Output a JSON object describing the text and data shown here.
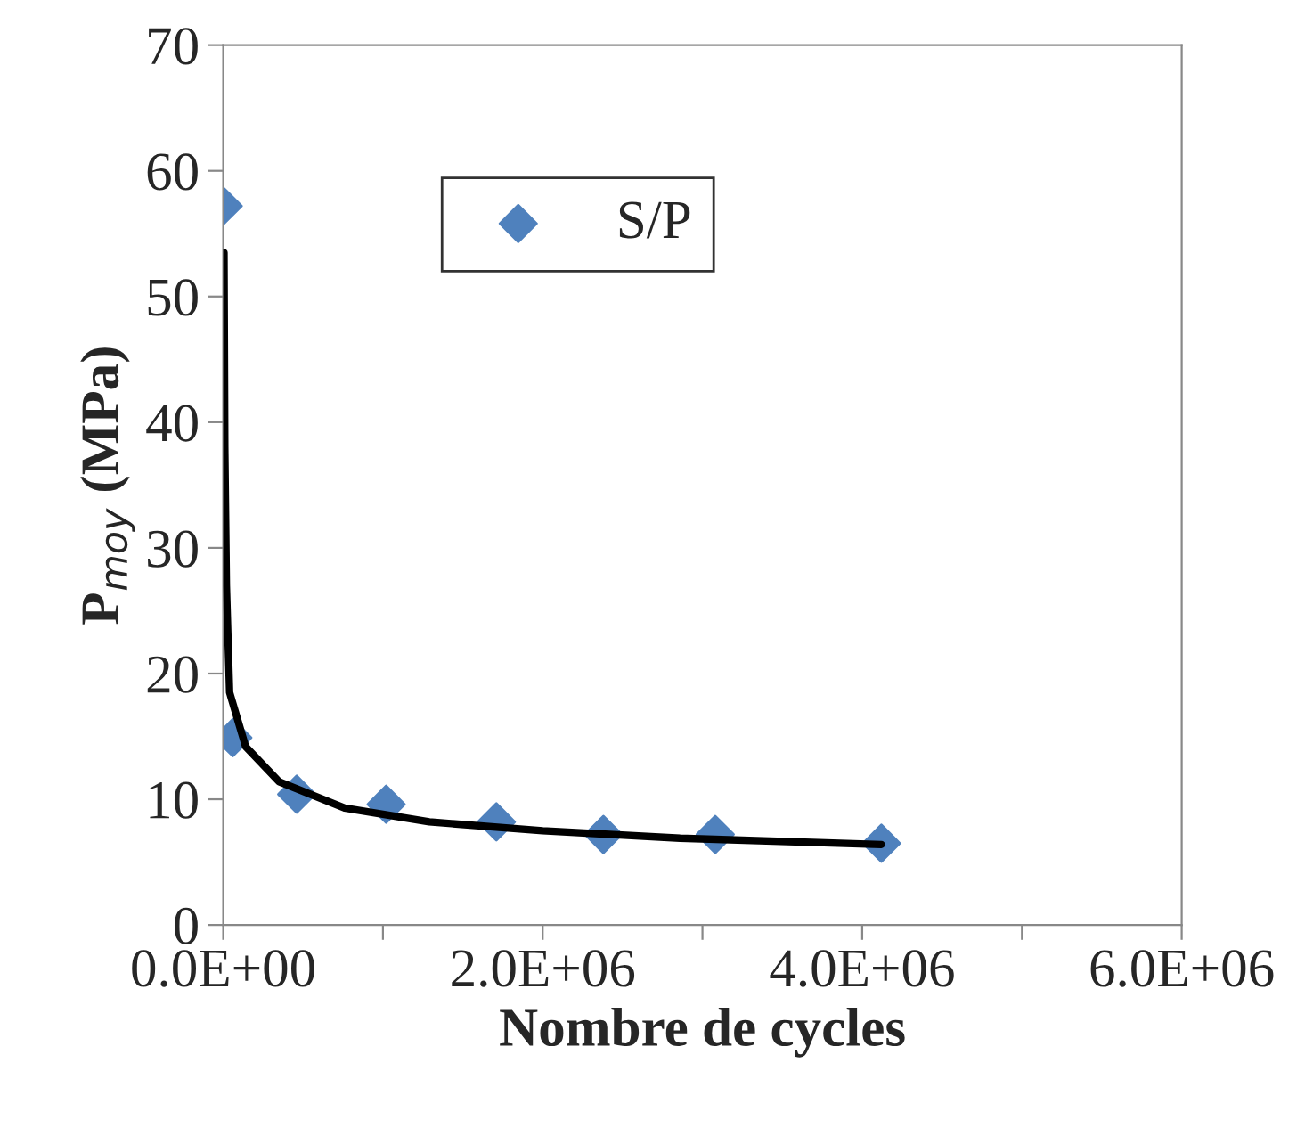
{
  "chart_data": {
    "type": "scatter",
    "xlabel": "Nombre de cycles",
    "ylabel": "P$_{moy}$ (MPa)",
    "xlim": [
      0,
      6000000
    ],
    "ylim": [
      0,
      70
    ],
    "xticks": [
      {
        "value": 0,
        "label": "0.0E+00"
      },
      {
        "value": 1000000,
        "label": null
      },
      {
        "value": 2000000,
        "label": "2.0E+06"
      },
      {
        "value": 3000000,
        "label": null
      },
      {
        "value": 4000000,
        "label": "4.0E+06"
      },
      {
        "value": 5000000,
        "label": null
      },
      {
        "value": 6000000,
        "label": "6.0E+06"
      }
    ],
    "yticks": [
      0,
      10,
      20,
      30,
      40,
      50,
      60,
      70
    ],
    "grid": false,
    "legend": "top",
    "series": [
      {
        "name": "S/P",
        "marker": "diamond",
        "color": "#4f81bd",
        "x": [
          0,
          60000,
          460000,
          1020000,
          1710000,
          2380000,
          3080000,
          4120000
        ],
        "values": [
          57.2,
          14.9,
          10.4,
          9.6,
          8.2,
          7.2,
          7.2,
          6.5
        ]
      },
      {
        "type": "line",
        "marker": "none",
        "line_style": "solid",
        "color": "#000000",
        "x": [
          5000,
          10000,
          20000,
          40000,
          140000,
          350000,
          760000,
          1290000,
          2000000,
          2860000,
          4120000
        ],
        "values": [
          53.5,
          38,
          27,
          18.5,
          14.2,
          11.4,
          9.3,
          8.2,
          7.5,
          6.9,
          6.4
        ]
      }
    ]
  }
}
